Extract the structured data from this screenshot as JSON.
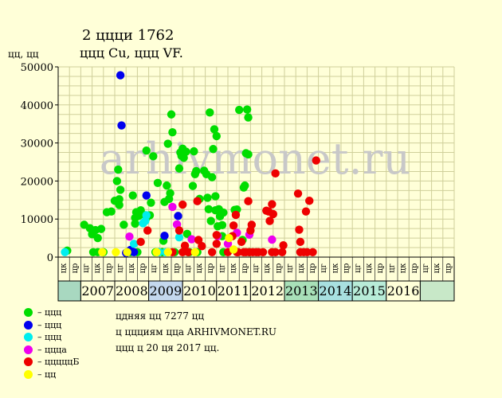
{
  "title": "2 ццци 1762",
  "subtitle": "ццц Cu, ццц VF.",
  "ylabel": "цц, цц",
  "watermark": "arhivmonet.ru",
  "info": [
    "цдняя цц 7277 цц",
    "ц ццциям цца ARHIVMONET.RU",
    "ццц ц 20 ця 2017 цц."
  ],
  "legend": [
    {
      "label": "– ццц",
      "color": "#00dd00"
    },
    {
      "label": "– ццц",
      "color": "#0000ee"
    },
    {
      "label": "– ццц",
      "color": "#00eeee"
    },
    {
      "label": "– ццца",
      "color": "#ee00ee"
    },
    {
      "label": "– цццццБ",
      "color": "#ee0000"
    },
    {
      "label": "– цц",
      "color": "#ffff00"
    }
  ],
  "chart_data": {
    "type": "scatter",
    "title": "2 ццци 1762",
    "ylabel": "цц, цц",
    "ylim": [
      0,
      50000
    ],
    "y_ticks": [
      0,
      10000,
      20000,
      30000,
      40000,
      50000
    ],
    "grid": true,
    "half_year_labels": [
      "цк",
      "цр",
      "цг",
      "цк",
      "цр",
      "цг",
      "цк",
      "цр",
      "цг",
      "цк",
      "цр",
      "цг",
      "цк",
      "цр",
      "цг",
      "цк",
      "цр",
      "цг",
      "цк",
      "цр",
      "цг",
      "цк",
      "цр",
      "цг",
      "цк",
      "цр",
      "цг",
      "цк",
      "цр",
      "цг",
      "цк",
      "цр",
      "цг",
      "цк",
      "цр"
    ],
    "year_labels": [
      "2007",
      "2008",
      "2009",
      "2010",
      "2011",
      "2012",
      "2013",
      "2014",
      "2015",
      "2016"
    ],
    "year_colors": [
      "#ffffd8",
      "#ffffd8",
      "#c4d8ee",
      "#ffffd8",
      "#ffffd8",
      "#ffffd8",
      "#a8e0b8",
      "#a8e0e0",
      "#b8ecd8",
      "#ffffd8"
    ],
    "series": [
      {
        "color": "#00dd00",
        "points": [
          [
            0.3,
            1700
          ],
          [
            1.8,
            8500
          ],
          [
            2.3,
            7600
          ],
          [
            2.5,
            6000
          ],
          [
            2.6,
            1300
          ],
          [
            2.8,
            7100
          ],
          [
            3.0,
            5000
          ],
          [
            3.0,
            1300
          ],
          [
            3.3,
            7400
          ],
          [
            3.5,
            1300
          ],
          [
            3.8,
            11800
          ],
          [
            4.2,
            12000
          ],
          [
            4.5,
            14800
          ],
          [
            4.7,
            20000
          ],
          [
            4.8,
            23000
          ],
          [
            4.9,
            15200
          ],
          [
            4.9,
            13700
          ],
          [
            5.0,
            17700
          ],
          [
            5.3,
            8500
          ],
          [
            5.6,
            1300
          ],
          [
            5.9,
            1300
          ],
          [
            6.1,
            16200
          ],
          [
            6.3,
            8800
          ],
          [
            6.3,
            10300
          ],
          [
            6.4,
            11800
          ],
          [
            6.5,
            1300
          ],
          [
            6.6,
            10800
          ],
          [
            6.8,
            12300
          ],
          [
            7.2,
            11000
          ],
          [
            7.3,
            10300
          ],
          [
            7.3,
            28000
          ],
          [
            7.6,
            11000
          ],
          [
            7.7,
            14300
          ],
          [
            7.9,
            26500
          ],
          [
            8.1,
            1300
          ],
          [
            8.3,
            19500
          ],
          [
            8.4,
            1300
          ],
          [
            8.7,
            1300
          ],
          [
            8.7,
            1300
          ],
          [
            8.8,
            4300
          ],
          [
            8.9,
            14500
          ],
          [
            9.1,
            18800
          ],
          [
            9.2,
            29800
          ],
          [
            9.3,
            15300
          ],
          [
            9.4,
            16800
          ],
          [
            9.5,
            37500
          ],
          [
            9.6,
            32800
          ],
          [
            9.8,
            1300
          ],
          [
            10.2,
            23300
          ],
          [
            10.3,
            27500
          ],
          [
            10.4,
            26600
          ],
          [
            10.5,
            28500
          ],
          [
            10.6,
            26100
          ],
          [
            10.8,
            27700
          ],
          [
            10.9,
            6100
          ],
          [
            11.0,
            1300
          ],
          [
            11.1,
            1300
          ],
          [
            11.4,
            18700
          ],
          [
            11.5,
            27800
          ],
          [
            11.6,
            21800
          ],
          [
            11.7,
            22600
          ],
          [
            11.8,
            1300
          ],
          [
            12.0,
            15300
          ],
          [
            12.4,
            22700
          ],
          [
            12.6,
            21800
          ],
          [
            12.7,
            15600
          ],
          [
            12.8,
            12600
          ],
          [
            12.9,
            38000
          ],
          [
            13.0,
            9500
          ],
          [
            13.1,
            21000
          ],
          [
            13.2,
            28400
          ],
          [
            13.3,
            33600
          ],
          [
            13.4,
            16000
          ],
          [
            13.4,
            12300
          ],
          [
            13.5,
            31800
          ],
          [
            13.6,
            8100
          ],
          [
            13.7,
            12600
          ],
          [
            13.8,
            10700
          ],
          [
            13.9,
            11800
          ],
          [
            14.0,
            8400
          ],
          [
            14.1,
            11700
          ],
          [
            14.0,
            5500
          ],
          [
            14.1,
            1300
          ],
          [
            15.1,
            12400
          ],
          [
            15.3,
            12500
          ],
          [
            15.5,
            38700
          ],
          [
            15.8,
            4500
          ],
          [
            15.9,
            18300
          ],
          [
            16.0,
            18800
          ],
          [
            16.1,
            27300
          ],
          [
            16.2,
            38800
          ],
          [
            16.3,
            27000
          ],
          [
            16.3,
            36700
          ],
          [
            16.4,
            1300
          ]
        ]
      },
      {
        "color": "#0000ee",
        "points": [
          [
            5.0,
            47800
          ],
          [
            5.1,
            34600
          ],
          [
            5.5,
            1100
          ],
          [
            5.9,
            1900
          ],
          [
            6.2,
            1300
          ],
          [
            7.3,
            16200
          ],
          [
            8.9,
            5600
          ],
          [
            10.1,
            10800
          ]
        ]
      },
      {
        "color": "#00eeee",
        "points": [
          [
            0.1,
            1300
          ],
          [
            6.2,
            3500
          ],
          [
            7.0,
            8900
          ],
          [
            7.2,
            9500
          ],
          [
            7.3,
            11000
          ],
          [
            8.4,
            1300
          ],
          [
            9.0,
            1300
          ],
          [
            10.2,
            5200
          ]
        ]
      },
      {
        "color": "#ee00ee",
        "points": [
          [
            5.8,
            5400
          ],
          [
            9.6,
            13200
          ],
          [
            10.0,
            8600
          ],
          [
            11.3,
            4700
          ],
          [
            13.6,
            5500
          ],
          [
            14.5,
            3500
          ],
          [
            15.3,
            6400
          ],
          [
            16.4,
            5900
          ],
          [
            18.4,
            4600
          ]
        ]
      },
      {
        "color": "#ee0000",
        "points": [
          [
            6.8,
            4000
          ],
          [
            7.4,
            7000
          ],
          [
            9.6,
            1300
          ],
          [
            10.2,
            7000
          ],
          [
            10.5,
            13800
          ],
          [
            10.5,
            1300
          ],
          [
            10.7,
            3000
          ],
          [
            11.0,
            1300
          ],
          [
            11.8,
            14700
          ],
          [
            11.9,
            4500
          ],
          [
            12.2,
            2900
          ],
          [
            13.1,
            1300
          ],
          [
            13.5,
            3500
          ],
          [
            13.5,
            5800
          ],
          [
            14.5,
            1300
          ],
          [
            14.9,
            5500
          ],
          [
            15.0,
            8300
          ],
          [
            15.2,
            11100
          ],
          [
            15.3,
            1300
          ],
          [
            15.4,
            1300
          ],
          [
            15.7,
            4000
          ],
          [
            15.9,
            1300
          ],
          [
            16.1,
            1300
          ],
          [
            16.3,
            14700
          ],
          [
            16.4,
            1300
          ],
          [
            16.5,
            7000
          ],
          [
            16.6,
            8500
          ],
          [
            16.7,
            1300
          ],
          [
            17.0,
            1300
          ],
          [
            17.2,
            1300
          ],
          [
            17.6,
            1300
          ],
          [
            17.9,
            12200
          ],
          [
            18.1,
            12000
          ],
          [
            18.2,
            9500
          ],
          [
            18.4,
            13900
          ],
          [
            18.5,
            11300
          ],
          [
            18.7,
            22000
          ],
          [
            18.7,
            1300
          ],
          [
            18.4,
            1300
          ],
          [
            19.3,
            1300
          ],
          [
            19.4,
            3100
          ],
          [
            20.7,
            16700
          ],
          [
            20.8,
            7200
          ],
          [
            20.9,
            4000
          ],
          [
            20.9,
            1300
          ],
          [
            21.2,
            1300
          ],
          [
            21.4,
            12000
          ],
          [
            21.7,
            14800
          ],
          [
            21.5,
            1300
          ],
          [
            22.0,
            1300
          ],
          [
            22.3,
            25400
          ]
        ]
      },
      {
        "color": "#ffff00",
        "points": [
          [
            3.4,
            1300
          ],
          [
            4.6,
            1300
          ],
          [
            5.6,
            1300
          ],
          [
            8.2,
            1300
          ],
          [
            9.2,
            1300
          ],
          [
            11.6,
            1300
          ],
          [
            14.6,
            5000
          ],
          [
            15.0,
            2000
          ]
        ]
      }
    ]
  }
}
